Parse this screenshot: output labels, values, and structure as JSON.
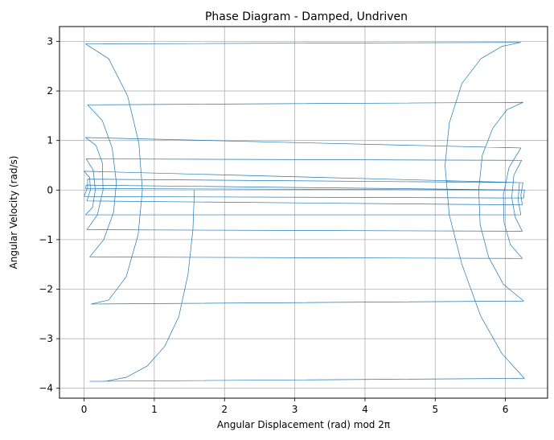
{
  "chart_data": {
    "type": "line",
    "title": "Phase Diagram - Damped, Undriven",
    "xlabel": "Angular Displacement (rad) mod 2π",
    "ylabel": "Angular Velocity (rad/s)",
    "xlim": [
      -0.35,
      6.6
    ],
    "ylim": [
      -4.2,
      3.3
    ],
    "xticks": [
      0,
      1,
      2,
      3,
      4,
      5,
      6
    ],
    "xtick_labels": [
      "0",
      "1",
      "2",
      "3",
      "4",
      "5",
      "6"
    ],
    "yticks": [
      -4,
      -3,
      -2,
      -1,
      0,
      1,
      2,
      3
    ],
    "ytick_labels": [
      "−4",
      "−3",
      "−2",
      "−1",
      "0",
      "1",
      "2",
      "3"
    ],
    "grid": true,
    "line_color": "#1f77b4",
    "series": [
      {
        "name": "",
        "x": [
          1.571,
          1.55,
          1.48,
          1.35,
          1.15,
          0.9,
          0.6,
          0.3,
          0.08,
          6.27,
          5.95,
          5.65,
          5.38,
          5.2,
          5.14,
          5.2,
          5.38,
          5.65,
          5.95,
          6.22,
          0.02,
          0.35,
          0.62,
          0.78,
          0.83,
          0.77,
          0.6,
          0.35,
          0.1,
          6.26,
          5.97,
          5.76,
          5.64,
          5.62,
          5.67,
          5.82,
          6.02,
          6.25,
          0.05,
          0.26,
          0.4,
          0.46,
          0.42,
          0.28,
          0.08,
          6.24,
          6.07,
          5.98,
          5.97,
          6.05,
          6.22,
          0.02,
          0.17,
          0.26,
          0.27,
          0.19,
          0.04,
          6.24,
          6.14,
          6.09,
          6.12,
          6.23,
          0.03,
          0.13,
          0.16,
          0.12,
          0.02,
          6.22,
          6.18,
          6.2,
          0.0,
          0.08,
          0.09,
          0.04,
          6.24,
          6.22,
          6.25,
          0.05,
          0.05,
          0.0,
          6.26,
          6.27,
          0.03,
          0.02,
          6.28
        ],
        "y": [
          0.0,
          -0.8,
          -1.7,
          -2.55,
          -3.15,
          -3.55,
          -3.78,
          -3.86,
          -3.86,
          -3.8,
          -3.3,
          -2.55,
          -1.5,
          -0.5,
          0.5,
          1.35,
          2.15,
          2.65,
          2.9,
          2.98,
          2.95,
          2.65,
          1.9,
          0.95,
          0.0,
          -0.9,
          -1.75,
          -2.22,
          -2.3,
          -2.24,
          -1.9,
          -1.35,
          -0.7,
          0.0,
          0.7,
          1.25,
          1.62,
          1.77,
          1.72,
          1.4,
          0.85,
          0.15,
          -0.45,
          -1.0,
          -1.35,
          -1.38,
          -1.1,
          -0.65,
          -0.1,
          0.45,
          0.85,
          1.06,
          0.9,
          0.55,
          0.0,
          -0.5,
          -0.8,
          -0.83,
          -0.55,
          -0.15,
          0.3,
          0.6,
          0.63,
          0.4,
          0.0,
          -0.35,
          -0.5,
          -0.5,
          -0.2,
          0.15,
          0.38,
          0.25,
          0.0,
          -0.22,
          -0.3,
          -0.1,
          0.15,
          0.22,
          0.05,
          -0.13,
          -0.16,
          0.0,
          0.1,
          0.03,
          0.0
        ]
      }
    ]
  }
}
